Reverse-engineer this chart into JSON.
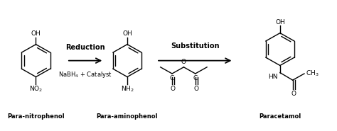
{
  "bg_color": "#ffffff",
  "text_color": "#000000",
  "molecule1_label": "Para-nitrophenol",
  "molecule2_label": "Para-aminophenol",
  "molecule3_label": "Paracetamol",
  "arrow1_top": "Reduction",
  "arrow1_bottom": "NaBH$_4$ + Catalyst",
  "arrow2_top": "Substitution",
  "fig_width": 4.74,
  "fig_height": 1.85,
  "dpi": 100
}
